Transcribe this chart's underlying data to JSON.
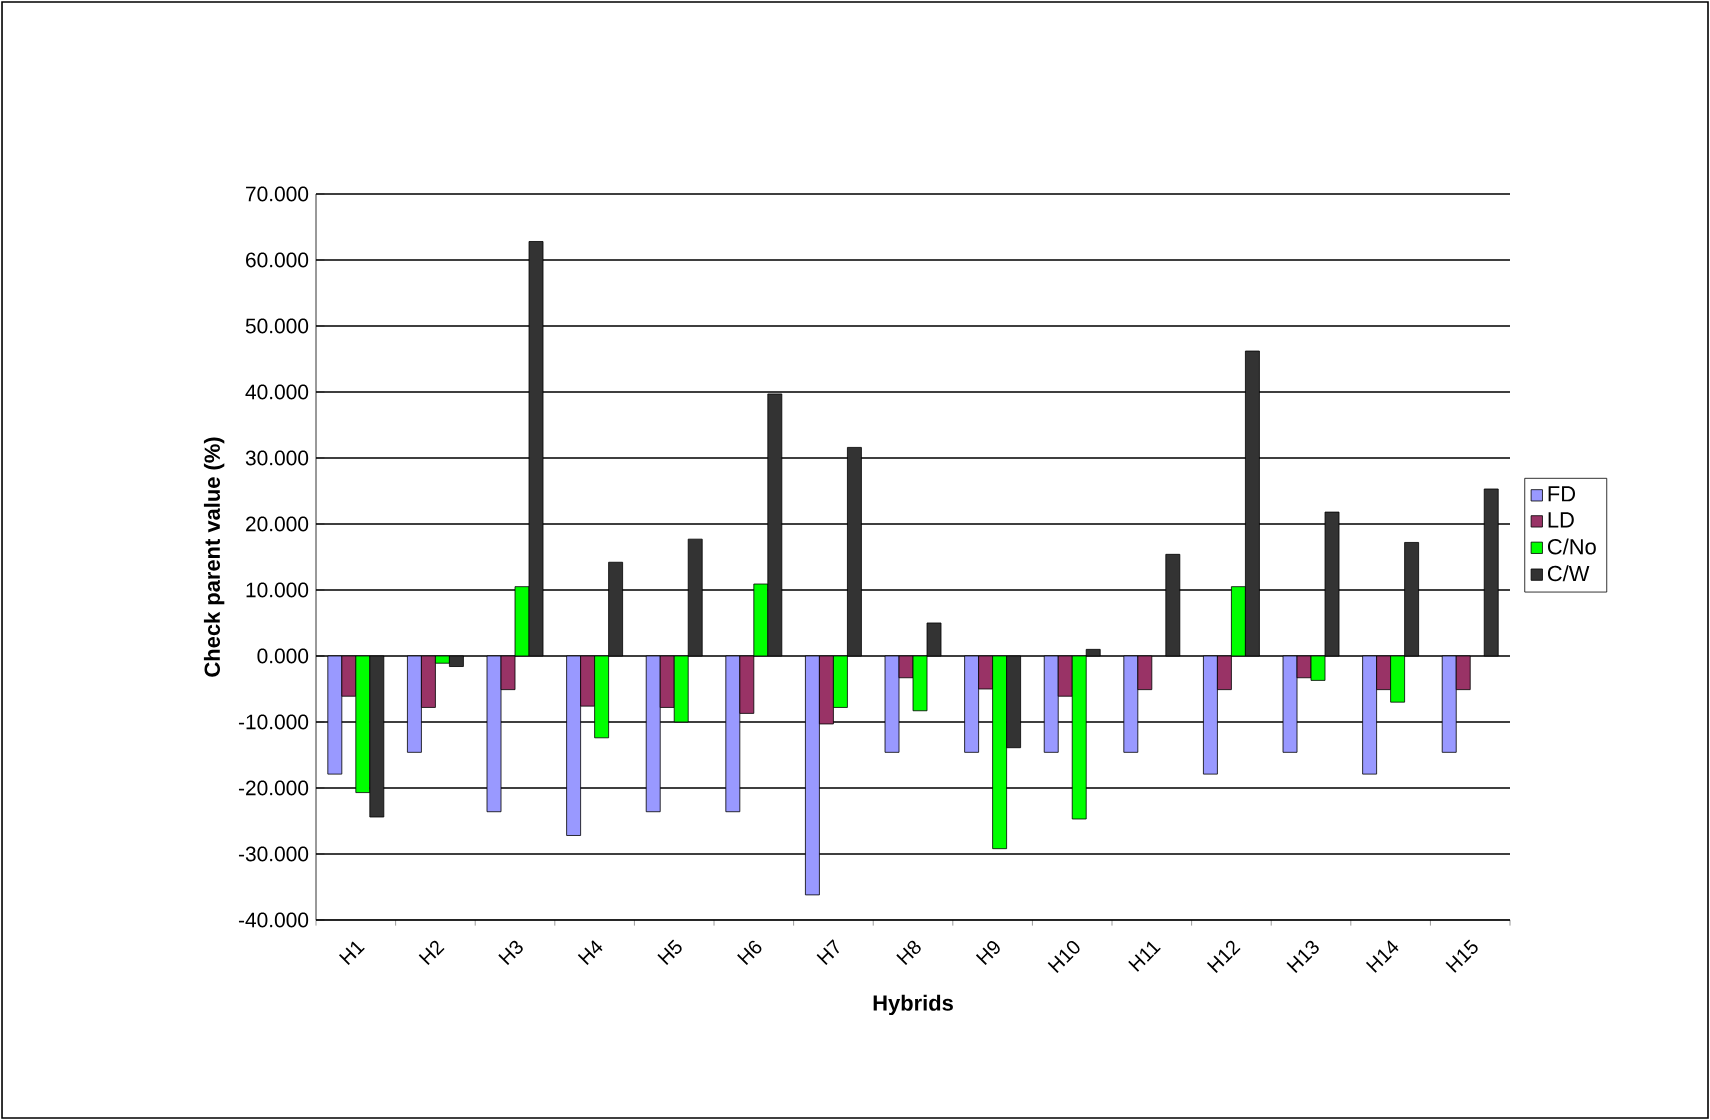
{
  "chart_data": {
    "type": "bar",
    "xlabel": "Hybrids",
    "ylabel": "Check parent value (%)",
    "categories": [
      "H1",
      "H2",
      "H3",
      "H4",
      "H5",
      "H6",
      "H7",
      "H8",
      "H9",
      "H10",
      "H11",
      "H12",
      "H13",
      "H14",
      "H15"
    ],
    "series": [
      {
        "name": "FD",
        "color": "#9999ff",
        "values": [
          -17.9,
          -14.6,
          -23.6,
          -27.2,
          -23.6,
          -23.6,
          -36.2,
          -14.6,
          -14.6,
          -14.6,
          -14.6,
          -17.9,
          -14.6,
          -17.9,
          -14.6
        ]
      },
      {
        "name": "LD",
        "color": "#993366",
        "values": [
          -6.1,
          -7.8,
          -5.1,
          -7.6,
          -7.8,
          -8.7,
          -10.3,
          -3.3,
          -5.0,
          -6.1,
          -5.1,
          -5.1,
          -3.3,
          -5.1,
          -5.1
        ]
      },
      {
        "name": "C/No",
        "color": "#00ff00",
        "values": [
          -20.7,
          -1.1,
          10.5,
          -12.4,
          -10.0,
          10.9,
          -7.8,
          -8.3,
          -29.2,
          -24.7,
          null,
          10.5,
          -3.7,
          -7.0,
          null
        ]
      },
      {
        "name": "C/W",
        "color": "#333333",
        "values": [
          -24.4,
          -1.6,
          62.8,
          14.2,
          17.7,
          39.7,
          31.6,
          5.0,
          -13.9,
          1.0,
          15.4,
          46.2,
          21.8,
          17.2,
          25.3
        ]
      }
    ],
    "ylim": [
      -40,
      70
    ],
    "yticks": [
      {
        "value": -40,
        "label": "-40.000"
      },
      {
        "value": -30,
        "label": "-30.000"
      },
      {
        "value": -20,
        "label": "-20.000"
      },
      {
        "value": -10,
        "label": "-10.000"
      },
      {
        "value": 0,
        "label": "0.000"
      },
      {
        "value": 10,
        "label": "10.000"
      },
      {
        "value": 20,
        "label": "20.000"
      },
      {
        "value": 30,
        "label": "30.000"
      },
      {
        "value": 40,
        "label": "40.000"
      },
      {
        "value": 50,
        "label": "50.000"
      },
      {
        "value": 60,
        "label": "60.000"
      },
      {
        "value": 70,
        "label": "70.000"
      }
    ],
    "grid": "y",
    "legend": "right"
  }
}
